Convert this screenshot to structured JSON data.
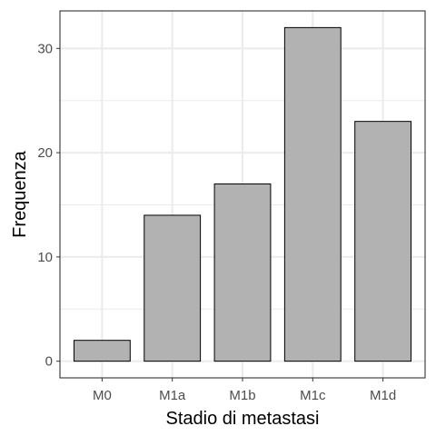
{
  "chart_data": {
    "type": "bar",
    "categories": [
      "M0",
      "M1a",
      "M1b",
      "M1c",
      "M1d"
    ],
    "values": [
      2,
      14,
      17,
      32,
      23
    ],
    "title": "",
    "xlabel": "Stadio di metastasi",
    "ylabel": "Frequenza",
    "ylim": [
      -1.6,
      33.6
    ],
    "yticks": [
      0,
      10,
      20,
      30
    ],
    "grid": true,
    "bar_fill": "#b2b2b2",
    "bar_stroke": "#000000",
    "grid_color": "#ebebeb",
    "panel_border": "#333333"
  }
}
